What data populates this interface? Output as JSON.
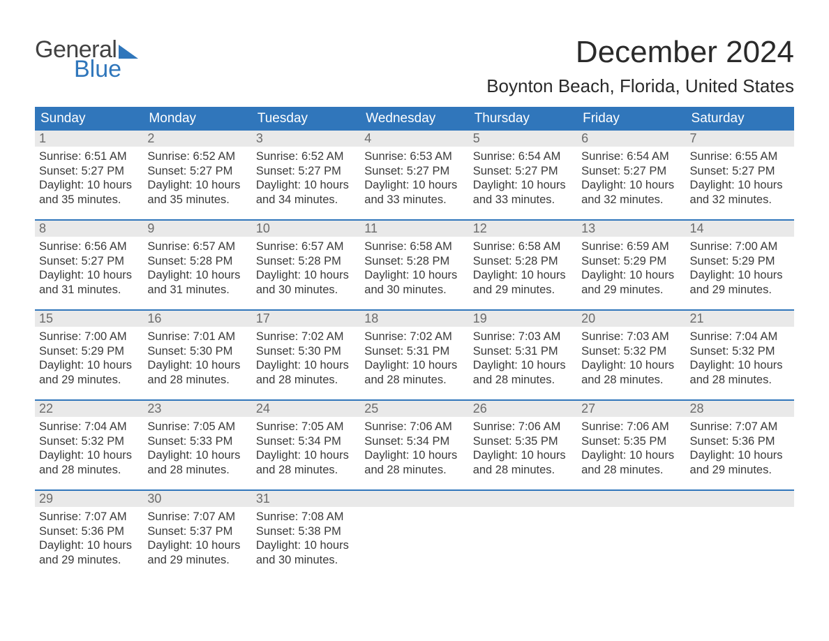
{
  "logo": {
    "word1": "General",
    "word2": "Blue"
  },
  "title": "December 2024",
  "location": "Boynton Beach, Florida, United States",
  "day_headers": [
    "Sunday",
    "Monday",
    "Tuesday",
    "Wednesday",
    "Thursday",
    "Friday",
    "Saturday"
  ],
  "colors": {
    "header_bg": "#3076bb",
    "header_text": "#ffffff",
    "daynum_bg": "#e9e9e9",
    "daynum_text": "#6b6b6b",
    "body_text": "#3a3a3a",
    "rule": "#3076bb",
    "logo_gray": "#424242",
    "logo_blue": "#2f76bb",
    "page_bg": "#ffffff"
  },
  "typography": {
    "title_fontsize": 44,
    "location_fontsize": 26,
    "header_fontsize": 19,
    "daynum_fontsize": 18,
    "cell_fontsize": 16.5,
    "logo_fontsize": 34
  },
  "weeks": [
    [
      {
        "n": "1",
        "sunrise": "Sunrise: 6:51 AM",
        "sunset": "Sunset: 5:27 PM",
        "d1": "Daylight: 10 hours",
        "d2": "and 35 minutes."
      },
      {
        "n": "2",
        "sunrise": "Sunrise: 6:52 AM",
        "sunset": "Sunset: 5:27 PM",
        "d1": "Daylight: 10 hours",
        "d2": "and 35 minutes."
      },
      {
        "n": "3",
        "sunrise": "Sunrise: 6:52 AM",
        "sunset": "Sunset: 5:27 PM",
        "d1": "Daylight: 10 hours",
        "d2": "and 34 minutes."
      },
      {
        "n": "4",
        "sunrise": "Sunrise: 6:53 AM",
        "sunset": "Sunset: 5:27 PM",
        "d1": "Daylight: 10 hours",
        "d2": "and 33 minutes."
      },
      {
        "n": "5",
        "sunrise": "Sunrise: 6:54 AM",
        "sunset": "Sunset: 5:27 PM",
        "d1": "Daylight: 10 hours",
        "d2": "and 33 minutes."
      },
      {
        "n": "6",
        "sunrise": "Sunrise: 6:54 AM",
        "sunset": "Sunset: 5:27 PM",
        "d1": "Daylight: 10 hours",
        "d2": "and 32 minutes."
      },
      {
        "n": "7",
        "sunrise": "Sunrise: 6:55 AM",
        "sunset": "Sunset: 5:27 PM",
        "d1": "Daylight: 10 hours",
        "d2": "and 32 minutes."
      }
    ],
    [
      {
        "n": "8",
        "sunrise": "Sunrise: 6:56 AM",
        "sunset": "Sunset: 5:27 PM",
        "d1": "Daylight: 10 hours",
        "d2": "and 31 minutes."
      },
      {
        "n": "9",
        "sunrise": "Sunrise: 6:57 AM",
        "sunset": "Sunset: 5:28 PM",
        "d1": "Daylight: 10 hours",
        "d2": "and 31 minutes."
      },
      {
        "n": "10",
        "sunrise": "Sunrise: 6:57 AM",
        "sunset": "Sunset: 5:28 PM",
        "d1": "Daylight: 10 hours",
        "d2": "and 30 minutes."
      },
      {
        "n": "11",
        "sunrise": "Sunrise: 6:58 AM",
        "sunset": "Sunset: 5:28 PM",
        "d1": "Daylight: 10 hours",
        "d2": "and 30 minutes."
      },
      {
        "n": "12",
        "sunrise": "Sunrise: 6:58 AM",
        "sunset": "Sunset: 5:28 PM",
        "d1": "Daylight: 10 hours",
        "d2": "and 29 minutes."
      },
      {
        "n": "13",
        "sunrise": "Sunrise: 6:59 AM",
        "sunset": "Sunset: 5:29 PM",
        "d1": "Daylight: 10 hours",
        "d2": "and 29 minutes."
      },
      {
        "n": "14",
        "sunrise": "Sunrise: 7:00 AM",
        "sunset": "Sunset: 5:29 PM",
        "d1": "Daylight: 10 hours",
        "d2": "and 29 minutes."
      }
    ],
    [
      {
        "n": "15",
        "sunrise": "Sunrise: 7:00 AM",
        "sunset": "Sunset: 5:29 PM",
        "d1": "Daylight: 10 hours",
        "d2": "and 29 minutes."
      },
      {
        "n": "16",
        "sunrise": "Sunrise: 7:01 AM",
        "sunset": "Sunset: 5:30 PM",
        "d1": "Daylight: 10 hours",
        "d2": "and 28 minutes."
      },
      {
        "n": "17",
        "sunrise": "Sunrise: 7:02 AM",
        "sunset": "Sunset: 5:30 PM",
        "d1": "Daylight: 10 hours",
        "d2": "and 28 minutes."
      },
      {
        "n": "18",
        "sunrise": "Sunrise: 7:02 AM",
        "sunset": "Sunset: 5:31 PM",
        "d1": "Daylight: 10 hours",
        "d2": "and 28 minutes."
      },
      {
        "n": "19",
        "sunrise": "Sunrise: 7:03 AM",
        "sunset": "Sunset: 5:31 PM",
        "d1": "Daylight: 10 hours",
        "d2": "and 28 minutes."
      },
      {
        "n": "20",
        "sunrise": "Sunrise: 7:03 AM",
        "sunset": "Sunset: 5:32 PM",
        "d1": "Daylight: 10 hours",
        "d2": "and 28 minutes."
      },
      {
        "n": "21",
        "sunrise": "Sunrise: 7:04 AM",
        "sunset": "Sunset: 5:32 PM",
        "d1": "Daylight: 10 hours",
        "d2": "and 28 minutes."
      }
    ],
    [
      {
        "n": "22",
        "sunrise": "Sunrise: 7:04 AM",
        "sunset": "Sunset: 5:32 PM",
        "d1": "Daylight: 10 hours",
        "d2": "and 28 minutes."
      },
      {
        "n": "23",
        "sunrise": "Sunrise: 7:05 AM",
        "sunset": "Sunset: 5:33 PM",
        "d1": "Daylight: 10 hours",
        "d2": "and 28 minutes."
      },
      {
        "n": "24",
        "sunrise": "Sunrise: 7:05 AM",
        "sunset": "Sunset: 5:34 PM",
        "d1": "Daylight: 10 hours",
        "d2": "and 28 minutes."
      },
      {
        "n": "25",
        "sunrise": "Sunrise: 7:06 AM",
        "sunset": "Sunset: 5:34 PM",
        "d1": "Daylight: 10 hours",
        "d2": "and 28 minutes."
      },
      {
        "n": "26",
        "sunrise": "Sunrise: 7:06 AM",
        "sunset": "Sunset: 5:35 PM",
        "d1": "Daylight: 10 hours",
        "d2": "and 28 minutes."
      },
      {
        "n": "27",
        "sunrise": "Sunrise: 7:06 AM",
        "sunset": "Sunset: 5:35 PM",
        "d1": "Daylight: 10 hours",
        "d2": "and 28 minutes."
      },
      {
        "n": "28",
        "sunrise": "Sunrise: 7:07 AM",
        "sunset": "Sunset: 5:36 PM",
        "d1": "Daylight: 10 hours",
        "d2": "and 29 minutes."
      }
    ],
    [
      {
        "n": "29",
        "sunrise": "Sunrise: 7:07 AM",
        "sunset": "Sunset: 5:36 PM",
        "d1": "Daylight: 10 hours",
        "d2": "and 29 minutes."
      },
      {
        "n": "30",
        "sunrise": "Sunrise: 7:07 AM",
        "sunset": "Sunset: 5:37 PM",
        "d1": "Daylight: 10 hours",
        "d2": "and 29 minutes."
      },
      {
        "n": "31",
        "sunrise": "Sunrise: 7:08 AM",
        "sunset": "Sunset: 5:38 PM",
        "d1": "Daylight: 10 hours",
        "d2": "and 30 minutes."
      },
      null,
      null,
      null,
      null
    ]
  ]
}
